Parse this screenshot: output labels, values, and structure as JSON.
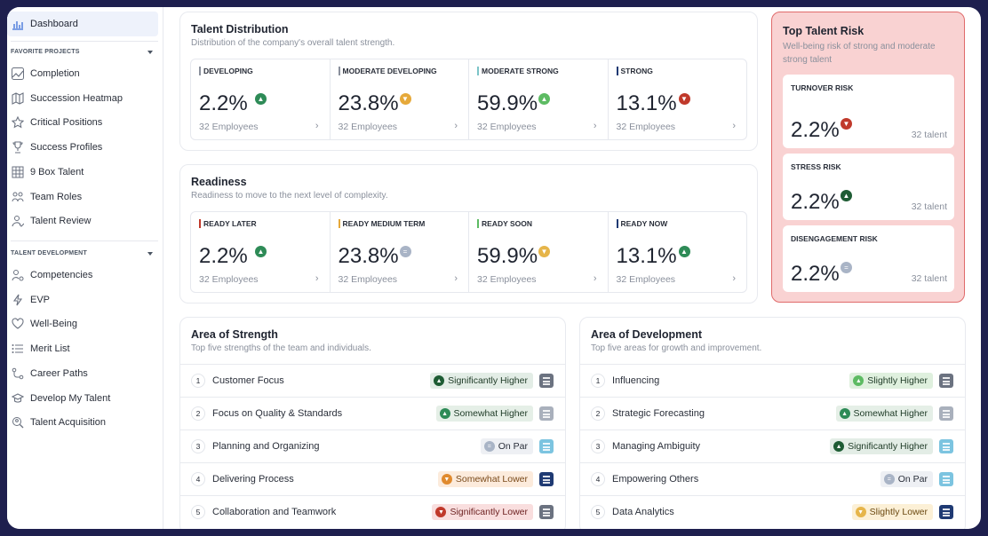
{
  "sidebar": {
    "dashboard": "Dashboard",
    "favorite_title": "FAVORITE PROJECTS",
    "favorites": [
      {
        "label": "Completion",
        "icon": "line-chart-icon"
      },
      {
        "label": "Succession Heatmap",
        "icon": "map-icon"
      },
      {
        "label": "Critical Positions",
        "icon": "star-icon"
      },
      {
        "label": "Success Profiles",
        "icon": "trophy-icon"
      },
      {
        "label": "9 Box Talent",
        "icon": "grid-icon"
      },
      {
        "label": "Team Roles",
        "icon": "team-icon"
      },
      {
        "label": "Talent Review",
        "icon": "user-review-icon"
      }
    ],
    "development_title": "TALENT DEVELOPMENT",
    "development": [
      {
        "label": "Competencies",
        "icon": "user-gear-icon"
      },
      {
        "label": "EVP",
        "icon": "bolt-icon"
      },
      {
        "label": "Well-Being",
        "icon": "heart-icon"
      },
      {
        "label": "Merit List",
        "icon": "list-icon"
      },
      {
        "label": "Career Paths",
        "icon": "path-icon"
      },
      {
        "label": "Develop My Talent",
        "icon": "graduation-icon"
      },
      {
        "label": "Talent Acquisition",
        "icon": "search-user-icon"
      }
    ]
  },
  "distribution": {
    "title": "Talent Distribution",
    "subtitle": "Distribution of the company's overall talent strength.",
    "metrics": [
      {
        "label": "DEVELOPING",
        "value": "2.2%",
        "employees": "32 Employees",
        "bar": "#8a909c",
        "badge": "#2e8b57",
        "glyph": "▲"
      },
      {
        "label": "MODERATE DEVELOPING",
        "value": "23.8%",
        "employees": "32 Employees",
        "bar": "#8a909c",
        "badge": "#e6a93a",
        "glyph": "▼"
      },
      {
        "label": "MODERATE STRONG",
        "value": "59.9%",
        "employees": "32 Employees",
        "bar": "#7cc4c8",
        "badge": "#5dbb63",
        "glyph": "▲"
      },
      {
        "label": "STRONG",
        "value": "13.1%",
        "employees": "32 Employees",
        "bar": "#1f3a73",
        "badge": "#c0392b",
        "glyph": "▼"
      }
    ]
  },
  "readiness": {
    "title": "Readiness",
    "subtitle": "Readiness to move to the next level of complexity.",
    "metrics": [
      {
        "label": "READY LATER",
        "value": "2.2%",
        "employees": "32 Employees",
        "bar": "#c0392b",
        "badge": "#2e8b57",
        "glyph": "▲"
      },
      {
        "label": "READY MEDIUM TERM",
        "value": "23.8%",
        "employees": "32 Employees",
        "bar": "#e6a93a",
        "badge": "#a9b4c6",
        "glyph": "="
      },
      {
        "label": "READY SOON",
        "value": "59.9%",
        "employees": "32 Employees",
        "bar": "#5dbb63",
        "badge": "#e6b54a",
        "glyph": "▼"
      },
      {
        "label": "READY NOW",
        "value": "13.1%",
        "employees": "32 Employees",
        "bar": "#1f3a73",
        "badge": "#2e8b57",
        "glyph": "▲"
      }
    ]
  },
  "risk": {
    "title": "Top Talent Risk",
    "subtitle": "Well-being risk of strong and moderate strong talent",
    "items": [
      {
        "label": "TURNOVER RISK",
        "value": "2.2%",
        "talent": "32 talent",
        "badge": "#c0392b",
        "glyph": "▼"
      },
      {
        "label": "STRESS RISK",
        "value": "2.2%",
        "talent": "32 talent",
        "badge": "#1e5c34",
        "glyph": "▲"
      },
      {
        "label": "DISENGAGEMENT RISK",
        "value": "2.2%",
        "talent": "32 talent",
        "badge": "#a9b4c6",
        "glyph": "="
      }
    ]
  },
  "strength": {
    "title": "Area of Strength",
    "subtitle": "Top five strengths of the team and individuals.",
    "rows": [
      {
        "num": "1",
        "name": "Customer Focus",
        "status": "Significantly Higher",
        "pill_bg": "#e3ede6",
        "pill_fg": "#1e3a26",
        "badge": "#1e5c34",
        "glyph": "▲",
        "doc": "#6b7280"
      },
      {
        "num": "2",
        "name": "Focus on Quality & Standards",
        "status": "Somewhat Higher",
        "pill_bg": "#e5efe7",
        "pill_fg": "#1e3a26",
        "badge": "#2e8b57",
        "glyph": "▲",
        "doc": "#a9b0bc"
      },
      {
        "num": "3",
        "name": "Planning and Organizing",
        "status": "On Par",
        "pill_bg": "#eef0f4",
        "pill_fg": "#2a2f3a",
        "badge": "#a9b4c6",
        "glyph": "=",
        "doc": "#7cc4e0"
      },
      {
        "num": "4",
        "name": "Delivering Process",
        "status": "Somewhat Lower",
        "pill_bg": "#fcebdc",
        "pill_fg": "#7a4a1a",
        "badge": "#e08a2e",
        "glyph": "▼",
        "doc": "#1f3a73"
      },
      {
        "num": "5",
        "name": "Collaboration and Teamwork",
        "status": "Significantly Lower",
        "pill_bg": "#f9dede",
        "pill_fg": "#6b1f1f",
        "badge": "#c0392b",
        "glyph": "▼",
        "doc": "#6b7280"
      }
    ]
  },
  "development": {
    "title": "Area of Development",
    "subtitle": "Top five areas for growth and improvement.",
    "rows": [
      {
        "num": "1",
        "name": "Influencing",
        "status": "Slightly Higher",
        "pill_bg": "#dff0de",
        "pill_fg": "#1e3a26",
        "badge": "#5dbb63",
        "glyph": "▲",
        "doc": "#6b7280"
      },
      {
        "num": "2",
        "name": "Strategic Forecasting",
        "status": "Somewhat Higher",
        "pill_bg": "#e5efe7",
        "pill_fg": "#1e3a26",
        "badge": "#2e8b57",
        "glyph": "▲",
        "doc": "#a9b0bc"
      },
      {
        "num": "3",
        "name": "Managing Ambiguity",
        "status": "Significantly Higher",
        "pill_bg": "#e3ede6",
        "pill_fg": "#1e3a26",
        "badge": "#1e5c34",
        "glyph": "▲",
        "doc": "#7cc4e0"
      },
      {
        "num": "4",
        "name": "Empowering Others",
        "status": "On Par",
        "pill_bg": "#eef0f4",
        "pill_fg": "#2a2f3a",
        "badge": "#a9b4c6",
        "glyph": "=",
        "doc": "#7cc4e0"
      },
      {
        "num": "5",
        "name": "Data Analytics",
        "status": "Slightly Lower",
        "pill_bg": "#fcf0d6",
        "pill_fg": "#6b4a12",
        "badge": "#e6b54a",
        "glyph": "▼",
        "doc": "#1f3a73"
      }
    ]
  }
}
